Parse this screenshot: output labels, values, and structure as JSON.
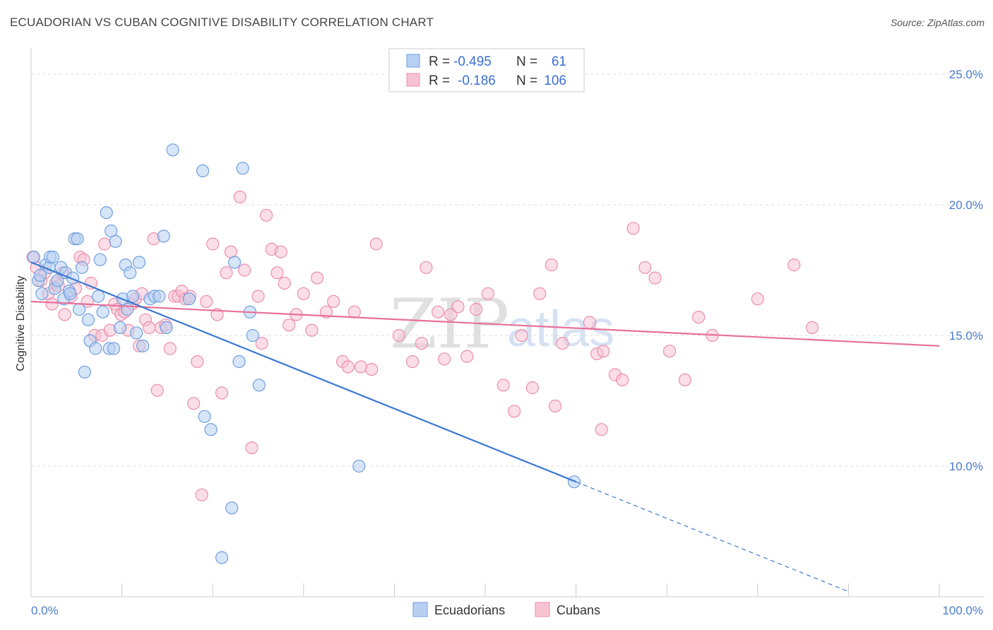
{
  "title": "ECUADORIAN VS CUBAN COGNITIVE DISABILITY CORRELATION CHART",
  "source": "Source: ZipAtlas.com",
  "watermark": {
    "zip": "ZIP",
    "atlas": "atlas"
  },
  "legend": {
    "rows": [
      {
        "r_label": "R =",
        "r_value": "-0.495",
        "n_label": "N =",
        "n_value": "61"
      },
      {
        "r_label": "R =",
        "r_value": "-0.186",
        "n_label": "N =",
        "n_value": "106"
      }
    ]
  },
  "colors": {
    "ecuadorian_fill": "#b7d0f2",
    "ecuadorian_stroke": "#6f9fe0",
    "ecuadorian_line": "#3a78d4",
    "cuban_fill": "#f7c3d3",
    "cuban_stroke": "#ec8fac",
    "cuban_line": "#e8709a",
    "value_text": "#3a6fd0",
    "grid": "#dddddd"
  },
  "chart_data": {
    "type": "scatter",
    "title": "ECUADORIAN VS CUBAN COGNITIVE DISABILITY CORRELATION CHART",
    "xlabel": "",
    "ylabel": "Cognitive Disability",
    "xlim": [
      0,
      100
    ],
    "ylim": [
      5,
      26
    ],
    "x_tick_labels": [
      "0.0%",
      "100.0%"
    ],
    "y_ticks": [
      10,
      15,
      20,
      25
    ],
    "y_tick_labels": [
      "10.0%",
      "15.0%",
      "20.0%",
      "25.0%"
    ],
    "grid": true,
    "legend_position": "bottom-center",
    "series": [
      {
        "name": "Ecuadorians",
        "r": -0.495,
        "n": 61,
        "trend": {
          "x0": 0,
          "y0": 17.8,
          "x1": 60,
          "y1": 9.4,
          "dash_to_x": 90,
          "dash_to_y": 5.2
        },
        "points": [
          [
            0.3,
            18.0
          ],
          [
            0.8,
            17.1
          ],
          [
            1.2,
            16.6
          ],
          [
            1.6,
            17.7
          ],
          [
            2.0,
            17.6
          ],
          [
            2.1,
            18.0
          ],
          [
            2.4,
            18.0
          ],
          [
            2.6,
            16.8
          ],
          [
            2.9,
            17.1
          ],
          [
            3.3,
            17.6
          ],
          [
            3.6,
            16.4
          ],
          [
            3.8,
            17.4
          ],
          [
            4.2,
            16.7
          ],
          [
            4.3,
            16.6
          ],
          [
            4.6,
            17.2
          ],
          [
            4.8,
            18.7
          ],
          [
            5.1,
            18.7
          ],
          [
            5.3,
            16.0
          ],
          [
            5.6,
            17.6
          ],
          [
            5.9,
            13.6
          ],
          [
            6.3,
            15.6
          ],
          [
            6.5,
            14.8
          ],
          [
            7.1,
            14.5
          ],
          [
            7.4,
            16.5
          ],
          [
            7.6,
            17.9
          ],
          [
            7.9,
            15.9
          ],
          [
            8.3,
            19.7
          ],
          [
            8.6,
            14.5
          ],
          [
            8.8,
            19.0
          ],
          [
            9.1,
            14.5
          ],
          [
            9.3,
            18.6
          ],
          [
            9.8,
            15.3
          ],
          [
            10.1,
            16.4
          ],
          [
            10.4,
            17.7
          ],
          [
            10.6,
            16.0
          ],
          [
            10.9,
            17.4
          ],
          [
            11.2,
            16.5
          ],
          [
            11.6,
            15.1
          ],
          [
            11.9,
            17.8
          ],
          [
            12.3,
            14.6
          ],
          [
            13.1,
            16.4
          ],
          [
            13.6,
            16.5
          ],
          [
            14.1,
            16.5
          ],
          [
            14.6,
            18.8
          ],
          [
            14.9,
            15.3
          ],
          [
            15.6,
            22.1
          ],
          [
            17.4,
            16.4
          ],
          [
            18.9,
            21.3
          ],
          [
            19.1,
            11.9
          ],
          [
            19.8,
            11.4
          ],
          [
            21.0,
            6.5
          ],
          [
            22.1,
            8.4
          ],
          [
            22.4,
            17.8
          ],
          [
            22.9,
            14.0
          ],
          [
            23.3,
            21.4
          ],
          [
            24.1,
            15.9
          ],
          [
            24.4,
            15.0
          ],
          [
            25.1,
            13.1
          ],
          [
            36.1,
            10.0
          ],
          [
            59.8,
            9.4
          ],
          [
            1.0,
            17.3
          ]
        ]
      },
      {
        "name": "Cubans",
        "r": -0.186,
        "n": 106,
        "trend": {
          "x0": 0,
          "y0": 16.3,
          "x1": 100,
          "y1": 14.6
        },
        "points": [
          [
            0.2,
            18.0
          ],
          [
            0.6,
            17.6
          ],
          [
            1.1,
            17.1
          ],
          [
            1.5,
            17.4
          ],
          [
            1.9,
            16.6
          ],
          [
            2.3,
            16.2
          ],
          [
            2.7,
            17.0
          ],
          [
            3.0,
            16.9
          ],
          [
            3.5,
            17.4
          ],
          [
            3.7,
            15.8
          ],
          [
            4.4,
            16.5
          ],
          [
            4.9,
            16.8
          ],
          [
            5.4,
            18.0
          ],
          [
            5.8,
            17.9
          ],
          [
            6.2,
            16.3
          ],
          [
            6.6,
            17.0
          ],
          [
            7.0,
            15.0
          ],
          [
            7.8,
            15.0
          ],
          [
            8.1,
            18.5
          ],
          [
            8.7,
            15.2
          ],
          [
            9.2,
            16.2
          ],
          [
            9.5,
            16.0
          ],
          [
            9.9,
            15.8
          ],
          [
            10.3,
            15.9
          ],
          [
            10.7,
            15.2
          ],
          [
            11.1,
            16.2
          ],
          [
            11.5,
            16.4
          ],
          [
            11.9,
            14.6
          ],
          [
            12.2,
            16.6
          ],
          [
            12.6,
            15.6
          ],
          [
            13.0,
            15.3
          ],
          [
            13.5,
            18.7
          ],
          [
            13.9,
            12.9
          ],
          [
            14.3,
            15.3
          ],
          [
            14.8,
            15.4
          ],
          [
            15.3,
            14.5
          ],
          [
            15.8,
            16.5
          ],
          [
            16.2,
            16.5
          ],
          [
            16.6,
            16.7
          ],
          [
            17.0,
            16.4
          ],
          [
            17.5,
            16.5
          ],
          [
            17.9,
            12.4
          ],
          [
            18.3,
            14.0
          ],
          [
            18.8,
            8.9
          ],
          [
            19.3,
            16.3
          ],
          [
            20.0,
            18.5
          ],
          [
            20.5,
            15.8
          ],
          [
            21.0,
            12.8
          ],
          [
            21.5,
            17.4
          ],
          [
            22.0,
            18.2
          ],
          [
            23.0,
            20.3
          ],
          [
            23.5,
            17.5
          ],
          [
            24.3,
            10.7
          ],
          [
            25.0,
            16.5
          ],
          [
            25.4,
            14.7
          ],
          [
            25.9,
            19.6
          ],
          [
            26.5,
            18.3
          ],
          [
            27.1,
            17.4
          ],
          [
            27.5,
            18.2
          ],
          [
            27.9,
            17.0
          ],
          [
            28.4,
            15.4
          ],
          [
            29.2,
            15.8
          ],
          [
            30.0,
            16.6
          ],
          [
            30.9,
            15.2
          ],
          [
            31.5,
            17.2
          ],
          [
            32.5,
            15.9
          ],
          [
            33.3,
            16.3
          ],
          [
            34.3,
            14.0
          ],
          [
            34.9,
            13.8
          ],
          [
            35.6,
            15.9
          ],
          [
            36.3,
            13.8
          ],
          [
            37.5,
            13.7
          ],
          [
            38.0,
            18.5
          ],
          [
            40.5,
            15.0
          ],
          [
            42.0,
            14.0
          ],
          [
            43.0,
            14.7
          ],
          [
            43.5,
            17.6
          ],
          [
            44.8,
            15.9
          ],
          [
            45.5,
            14.1
          ],
          [
            46.2,
            15.8
          ],
          [
            47.0,
            16.1
          ],
          [
            48.0,
            14.2
          ],
          [
            49.0,
            16.0
          ],
          [
            50.3,
            16.6
          ],
          [
            52.0,
            13.1
          ],
          [
            53.2,
            12.1
          ],
          [
            54.0,
            15.0
          ],
          [
            55.2,
            13.0
          ],
          [
            56.0,
            16.6
          ],
          [
            57.7,
            12.3
          ],
          [
            58.5,
            14.7
          ],
          [
            61.5,
            15.5
          ],
          [
            62.3,
            14.3
          ],
          [
            62.8,
            11.4
          ],
          [
            63.0,
            14.4
          ],
          [
            64.3,
            13.5
          ],
          [
            65.1,
            13.3
          ],
          [
            66.3,
            19.1
          ],
          [
            67.6,
            17.6
          ],
          [
            68.7,
            17.2
          ],
          [
            70.3,
            14.4
          ],
          [
            72.0,
            13.3
          ],
          [
            73.5,
            15.7
          ],
          [
            75.0,
            15.0
          ],
          [
            80.0,
            16.4
          ],
          [
            84.0,
            17.7
          ],
          [
            86.0,
            15.3
          ],
          [
            57.3,
            17.7
          ]
        ]
      }
    ]
  }
}
